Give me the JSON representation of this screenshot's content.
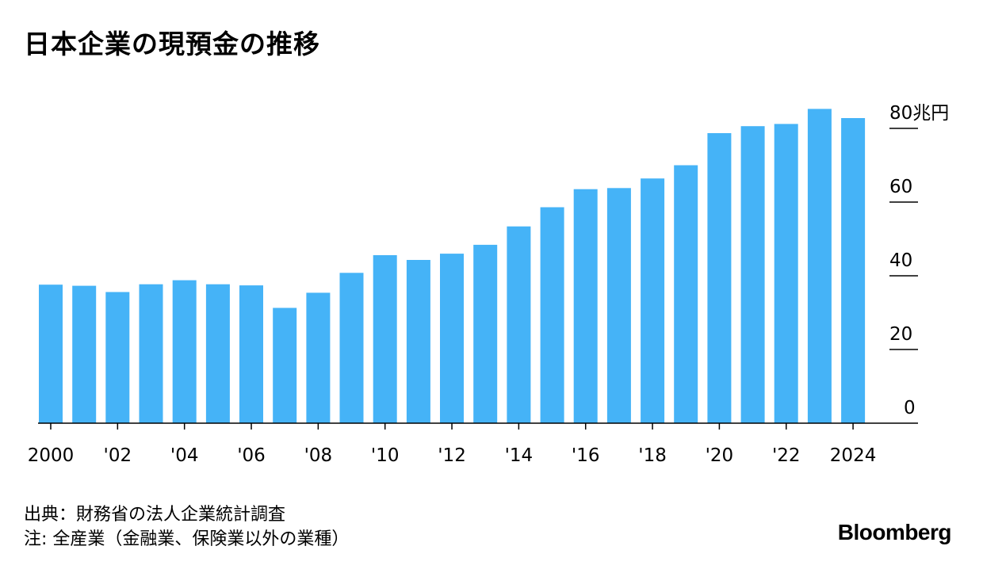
{
  "title": "日本企業の現預金の推移",
  "chart_data": {
    "type": "bar",
    "title": "日本企業の現預金の推移",
    "unit_label": "80兆円",
    "ylim": [
      0,
      80
    ],
    "yticks": [
      0,
      20,
      40,
      60,
      80
    ],
    "ytick_labels": [
      "0",
      "20",
      "40",
      "60",
      "80兆円"
    ],
    "xticks": [
      2000,
      2002,
      2004,
      2006,
      2008,
      2010,
      2012,
      2014,
      2016,
      2018,
      2020,
      2022,
      2024
    ],
    "xtick_labels": [
      "2000",
      "'02",
      "'04",
      "'06",
      "'08",
      "'10",
      "'12",
      "'14",
      "'16",
      "'18",
      "'20",
      "'22",
      "2024"
    ],
    "categories": [
      2000,
      2001,
      2002,
      2003,
      2004,
      2005,
      2006,
      2007,
      2008,
      2009,
      2010,
      2011,
      2012,
      2013,
      2014,
      2015,
      2016,
      2017,
      2018,
      2019,
      2020,
      2021,
      2022,
      2023,
      2024
    ],
    "values": [
      37.6,
      37.3,
      35.6,
      37.7,
      38.8,
      37.7,
      37.4,
      31.3,
      35.4,
      40.8,
      45.6,
      44.3,
      46.0,
      48.4,
      53.4,
      58.6,
      63.5,
      63.8,
      66.4,
      70.0,
      78.7,
      80.6,
      81.2,
      85.3,
      82.8
    ],
    "bar_color": "#45b3f7",
    "grid": false
  },
  "footnote": {
    "source": "出典：財務省の法人企業統計調査",
    "note": "注: 全産業（金融業、保険業以外の業種）"
  },
  "brand": "Bloomberg"
}
